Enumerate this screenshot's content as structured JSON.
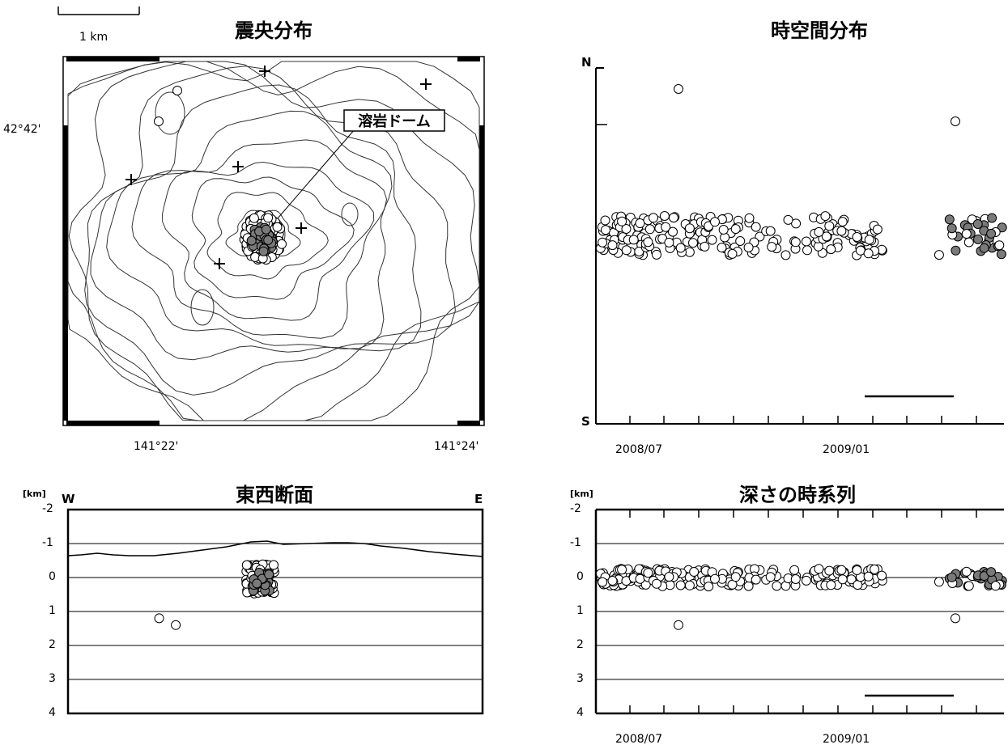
{
  "scale_bar": {
    "label": "1 km"
  },
  "map": {
    "title": "震央分布",
    "lat_label": "42°42'",
    "lon_labels": [
      "141°22'",
      "141°24'"
    ],
    "annotation": "溶岩ドーム",
    "colors": {
      "recent": "#7a7a7a",
      "earlier": "#ffffff"
    }
  },
  "spacetime": {
    "title": "時空間分布",
    "north_label": "N",
    "south_label": "S",
    "date_labels": [
      "2008/07",
      "2009/01"
    ]
  },
  "ew_section": {
    "title": "東西断面",
    "unit": "[km]",
    "west_label": "W",
    "east_label": "E",
    "depth_ticks": [
      "-2",
      "-1",
      "0",
      "1",
      "2",
      "3",
      "4"
    ]
  },
  "depth_series": {
    "title": "深さの時系列",
    "unit": "[km]",
    "depth_ticks": [
      "-2",
      "-1",
      "0",
      "1",
      "2",
      "3",
      "4"
    ],
    "date_labels": [
      "2008/07",
      "2009/01"
    ]
  },
  "chart_data": [
    {
      "type": "scatter",
      "title": "震央分布",
      "xlabel": "",
      "ylabel": "",
      "x_ticks": [
        "141°22'",
        "141°24'"
      ],
      "y_ticks": [
        "42°42'"
      ],
      "note": "Epicenters clustered at 溶岩ドーム; grey = most recent period, white = earlier",
      "series": [
        {
          "values_desc": "dense cluster at lava dome, ~150 events"
        }
      ]
    },
    {
      "type": "scatter",
      "title": "時空間分布",
      "xlabel": "",
      "ylabel": "",
      "x_ticks": [
        "2008/07",
        "2009/01"
      ],
      "y_range": [
        "S",
        "N"
      ]
    },
    {
      "type": "scatter",
      "title": "東西断面",
      "xlabel": "",
      "ylabel": "[km]",
      "ylim": [
        -2,
        4
      ],
      "y_ticks": [
        -2,
        -1,
        0,
        1,
        2,
        3,
        4
      ],
      "outlier_points": [
        {
          "x_frac": 0.22,
          "depth": 1.2
        },
        {
          "x_frac": 0.26,
          "depth": 1.4
        }
      ]
    },
    {
      "type": "scatter",
      "title": "深さの時系列",
      "xlabel": "",
      "ylabel": "[km]",
      "ylim": [
        -2,
        4
      ],
      "y_ticks": [
        -2,
        -1,
        0,
        1,
        2,
        3,
        4
      ],
      "x_ticks": [
        "2008/07",
        "2009/01"
      ],
      "outlier_points": [
        {
          "date": "2008/08",
          "depth": 1.4
        },
        {
          "date": "2009/04",
          "depth": 1.2
        }
      ]
    }
  ]
}
